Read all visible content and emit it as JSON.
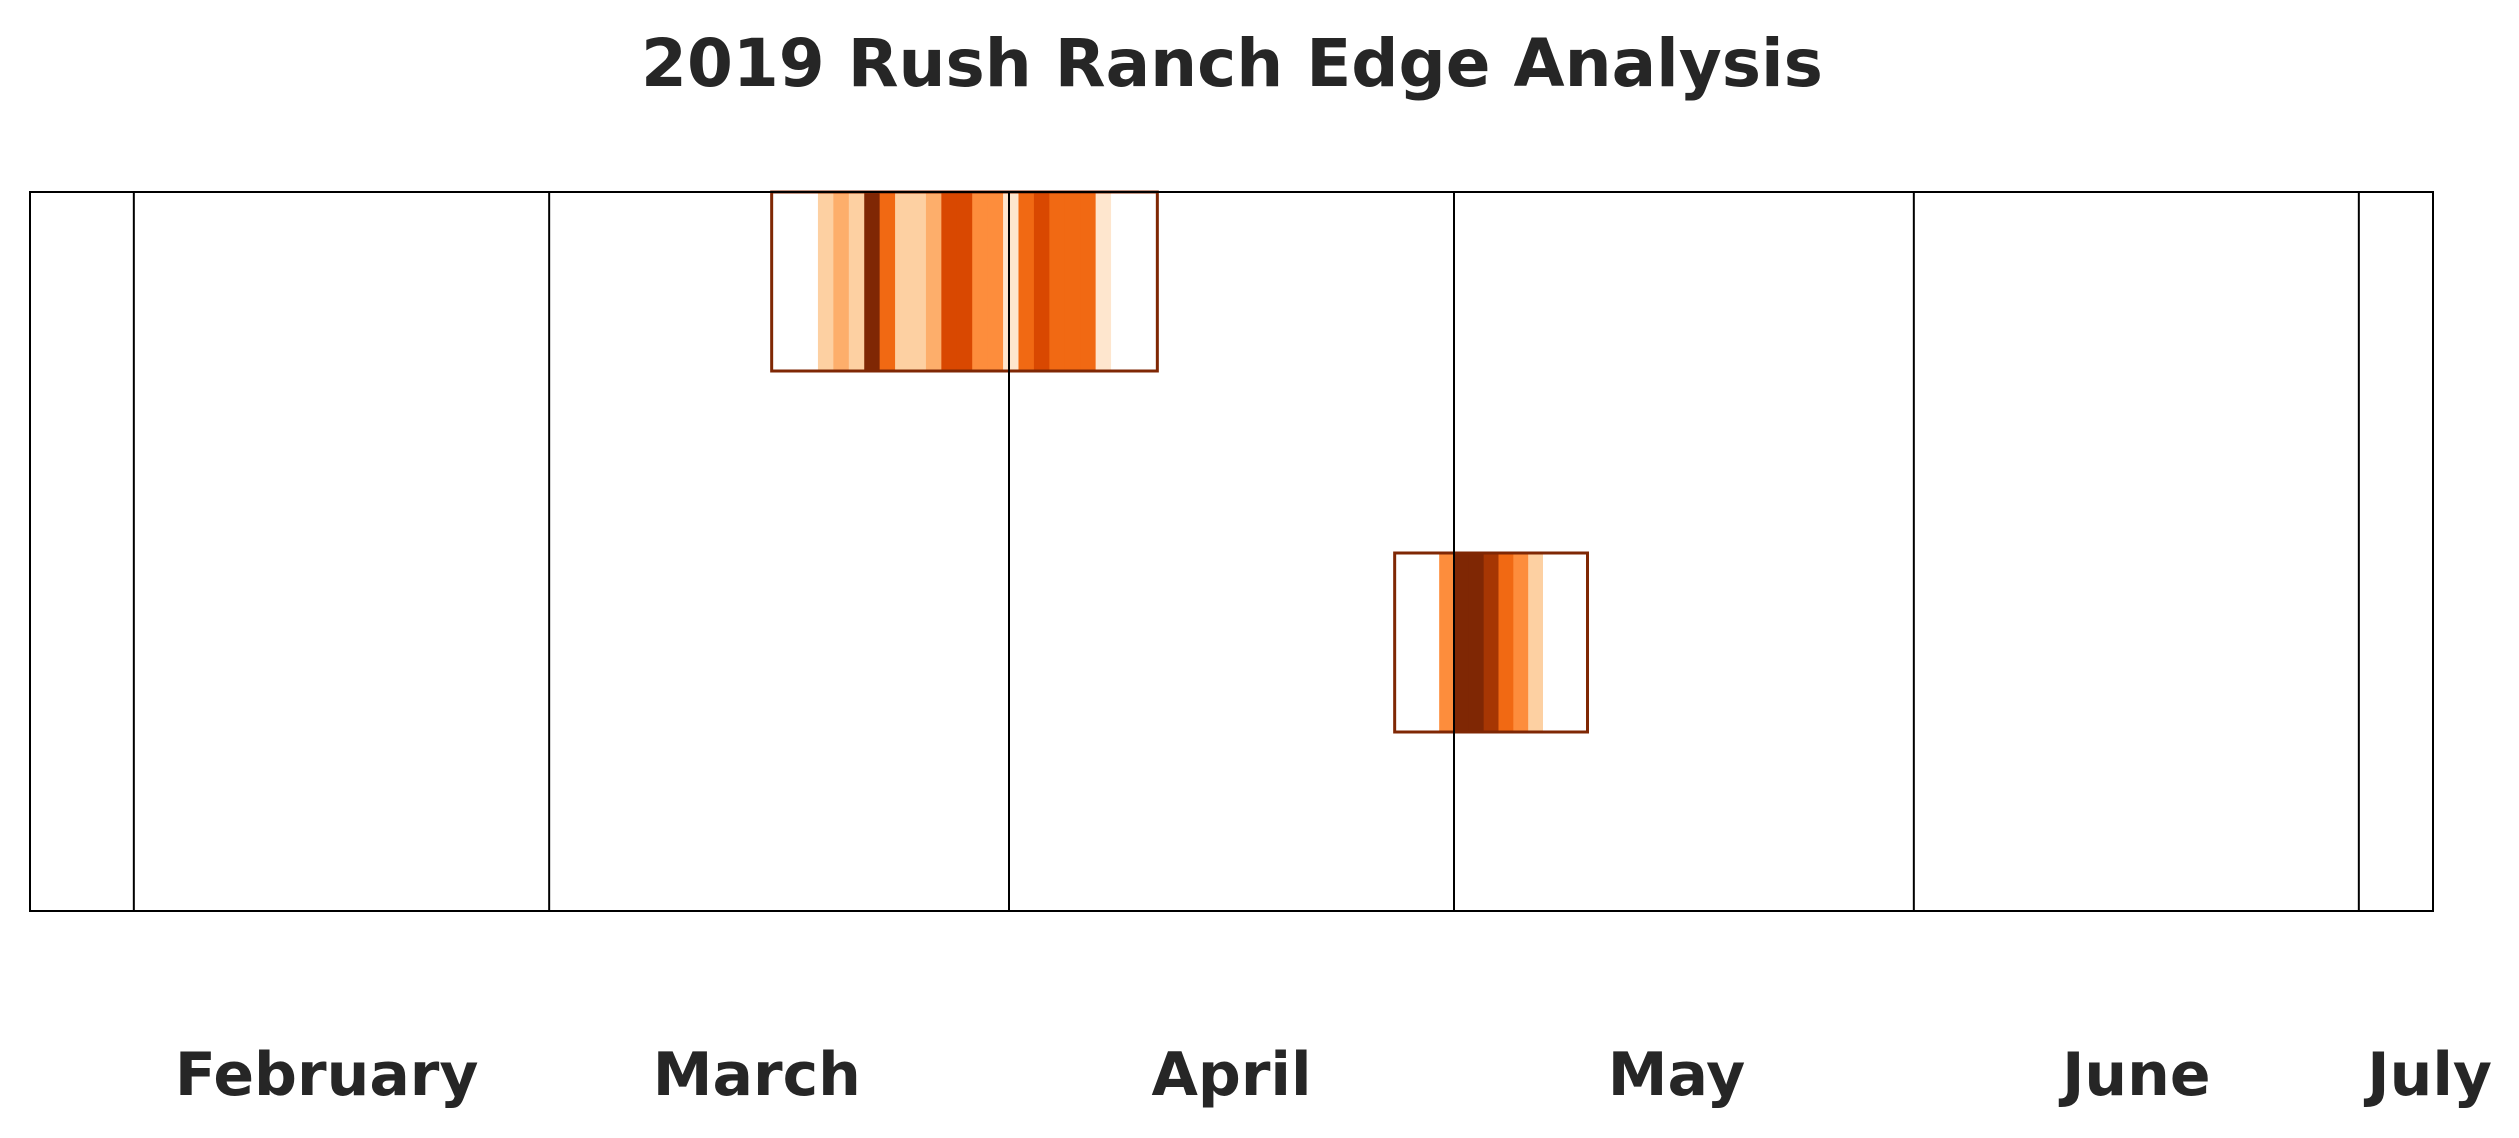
{
  "chart_data": {
    "type": "heatmap",
    "title": "2019 Rush Ranch Edge Analysis",
    "xlabel": "",
    "ylabel": "",
    "x_axis": {
      "kind": "date",
      "range": [
        "2019-01-25",
        "2019-07-06"
      ],
      "month_boundaries": [
        "2019-02-01",
        "2019-03-01",
        "2019-04-01",
        "2019-05-01",
        "2019-06-01",
        "2019-07-01"
      ],
      "tick_labels": [
        {
          "label": "February",
          "date": "2019-02-14"
        },
        {
          "label": "March",
          "date": "2019-03-15"
        },
        {
          "label": "April",
          "date": "2019-04-16"
        },
        {
          "label": "May",
          "date": "2019-05-16"
        },
        {
          "label": "June",
          "date": "2019-06-16"
        },
        {
          "label": "July",
          "date": "2019-07-06"
        }
      ]
    },
    "grid": "vertical lines at month boundaries",
    "colormap": [
      "#ffffff",
      "#fee6ce",
      "#fdd0a2",
      "#fdae6b",
      "#fd8d3c",
      "#f16913",
      "#d94801",
      "#a63603",
      "#7f2704"
    ],
    "rows": [
      {
        "window": [
          "2019-03-16",
          "2019-04-11"
        ],
        "intensities": [
          0,
          0,
          0,
          2,
          3,
          2,
          8,
          5,
          2,
          2,
          3,
          6,
          6,
          4,
          4,
          1,
          5,
          6,
          5,
          5,
          5,
          1,
          0,
          0,
          0
        ]
      },
      {
        "window": [
          "2019-04-27",
          "2019-05-10"
        ],
        "intensities": [
          0,
          0,
          0,
          4,
          8,
          8,
          7,
          5,
          4,
          2,
          0,
          0,
          0
        ]
      }
    ]
  }
}
